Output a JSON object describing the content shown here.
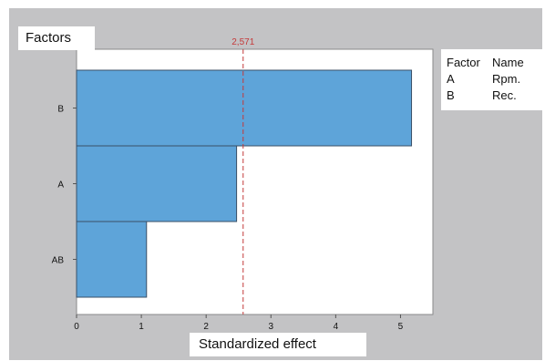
{
  "chart_data": {
    "type": "bar",
    "orientation": "horizontal",
    "categories": [
      "B",
      "A",
      "AB"
    ],
    "values": [
      5.17,
      2.47,
      1.08
    ],
    "title": "",
    "ylabel": "Factors",
    "xlabel": "Standardized effect",
    "xlim": [
      0,
      5.5
    ],
    "xticks": [
      "0",
      "1",
      "2",
      "3",
      "4",
      "5"
    ],
    "reference_line": {
      "value": 2.571,
      "label": "2,571",
      "color": "#c43a3a",
      "style": "dashed"
    },
    "bar_color": "#5ea4d9",
    "bar_edge_color": "#3a4f66",
    "grid": false,
    "legend": {
      "placement": "right",
      "header": {
        "factor": "Factor",
        "name": "Name"
      },
      "rows": [
        {
          "factor": "A",
          "name": "Rpm."
        },
        {
          "factor": "B",
          "name": "Rec."
        }
      ]
    }
  }
}
